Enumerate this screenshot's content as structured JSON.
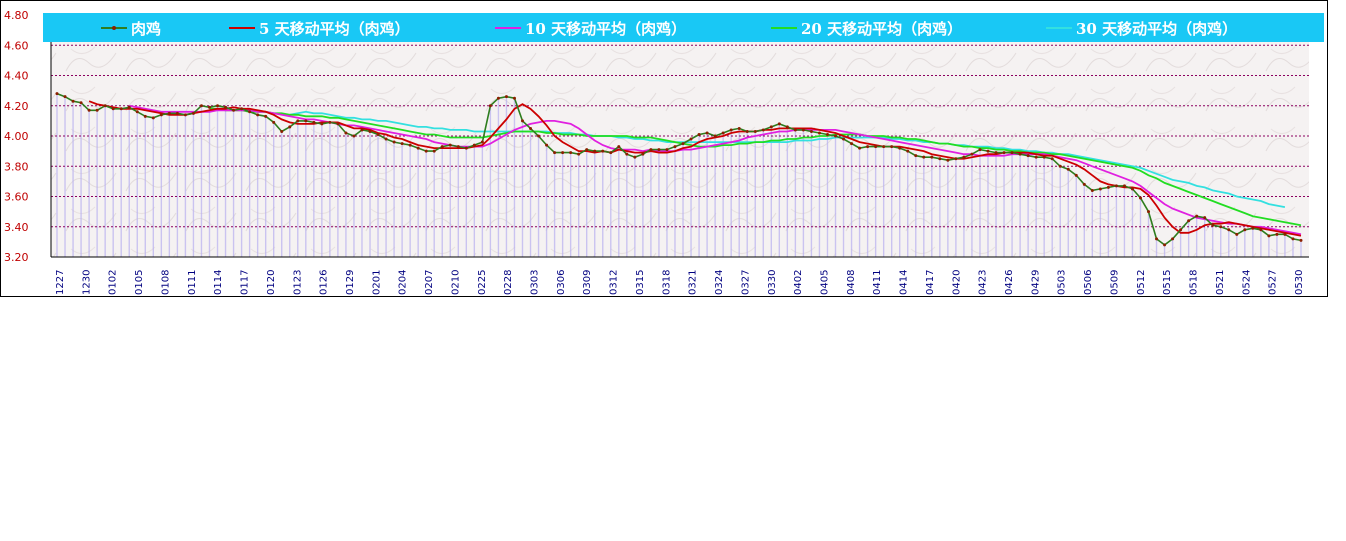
{
  "chart_data": {
    "type": "line",
    "y_axis": {
      "min": 3.2,
      "max": 4.8,
      "step": 0.2,
      "tick_labels": [
        "3.20",
        "3.40",
        "3.60",
        "3.80",
        "4.00",
        "4.20",
        "4.40",
        "4.60",
        "4.80"
      ]
    },
    "x_axis": {
      "tick_labels": [
        "1227",
        "1230",
        "0102",
        "0105",
        "0108",
        "0111",
        "0114",
        "0117",
        "0120",
        "0123",
        "0126",
        "0129",
        "0201",
        "0204",
        "0207",
        "0210",
        "0225",
        "0228",
        "0303",
        "0306",
        "0309",
        "0312",
        "0315",
        "0318",
        "0321",
        "0324",
        "0327",
        "0330",
        "0402",
        "0405",
        "0408",
        "0411",
        "0414",
        "0417",
        "0420",
        "0423",
        "0426",
        "0429",
        "0503",
        "0506",
        "0509",
        "0512",
        "0515",
        "0518",
        "0521",
        "0524",
        "0527",
        "0530"
      ]
    },
    "grid": "horizontal dashed",
    "legend_position": "top",
    "series": [
      {
        "name": "肉鸡",
        "color": "#2e7d1e",
        "marker": "dot",
        "values": [
          4.28,
          4.26,
          4.23,
          4.22,
          4.17,
          4.17,
          4.2,
          4.18,
          4.18,
          4.19,
          4.16,
          4.13,
          4.12,
          4.14,
          4.15,
          4.15,
          4.14,
          4.15,
          4.2,
          4.19,
          4.2,
          4.19,
          4.17,
          4.18,
          4.16,
          4.14,
          4.13,
          4.09,
          4.03,
          4.06,
          4.1,
          4.1,
          4.09,
          4.08,
          4.09,
          4.08,
          4.02,
          4.0,
          4.04,
          4.03,
          4.01,
          3.98,
          3.96,
          3.95,
          3.94,
          3.92,
          3.9,
          3.9,
          3.93,
          3.94,
          3.93,
          3.92,
          3.94,
          3.96,
          4.2,
          4.25,
          4.26,
          4.25,
          4.1,
          4.05,
          4.0,
          3.94,
          3.89,
          3.89,
          3.89,
          3.88,
          3.91,
          3.9,
          3.9,
          3.89,
          3.93,
          3.88,
          3.86,
          3.88,
          3.91,
          3.91,
          3.91,
          3.93,
          3.95,
          3.98,
          4.01,
          4.02,
          4.0,
          4.02,
          4.04,
          4.05,
          4.03,
          4.03,
          4.04,
          4.06,
          4.08,
          4.06,
          4.04,
          4.04,
          4.03,
          4.02,
          4.01,
          4.0,
          3.98,
          3.95,
          3.92,
          3.93,
          3.93,
          3.93,
          3.93,
          3.92,
          3.9,
          3.87,
          3.86,
          3.86,
          3.85,
          3.84,
          3.85,
          3.86,
          3.88,
          3.91,
          3.9,
          3.89,
          3.89,
          3.89,
          3.88,
          3.87,
          3.86,
          3.86,
          3.85,
          3.8,
          3.78,
          3.74,
          3.68,
          3.64,
          3.65,
          3.66,
          3.67,
          3.67,
          3.65,
          3.59,
          3.5,
          3.32,
          3.28,
          3.32,
          3.38,
          3.44,
          3.47,
          3.46,
          3.41,
          3.4,
          3.38,
          3.35,
          3.38,
          3.39,
          3.38,
          3.34,
          3.35,
          3.35,
          3.32,
          3.31
        ]
      },
      {
        "name": "5 天移动平均（肉鸡）",
        "color": "#cc0000",
        "values": [
          null,
          null,
          null,
          null,
          4.23,
          4.21,
          4.2,
          4.19,
          4.18,
          4.18,
          4.18,
          4.17,
          4.16,
          4.15,
          4.14,
          4.14,
          4.14,
          4.15,
          4.16,
          4.17,
          4.18,
          4.18,
          4.19,
          4.18,
          4.18,
          4.17,
          4.16,
          4.14,
          4.11,
          4.09,
          4.08,
          4.08,
          4.08,
          4.09,
          4.09,
          4.09,
          4.07,
          4.05,
          4.05,
          4.04,
          4.02,
          4.01,
          3.99,
          3.98,
          3.96,
          3.94,
          3.93,
          3.92,
          3.92,
          3.92,
          3.92,
          3.92,
          3.93,
          3.94,
          3.99,
          4.05,
          4.11,
          4.18,
          4.21,
          4.18,
          4.13,
          4.07,
          4.0,
          3.96,
          3.93,
          3.9,
          3.9,
          3.89,
          3.9,
          3.89,
          3.91,
          3.9,
          3.89,
          3.89,
          3.9,
          3.89,
          3.89,
          3.9,
          3.92,
          3.93,
          3.96,
          3.98,
          3.99,
          4.0,
          4.02,
          4.03,
          4.03,
          4.03,
          4.04,
          4.04,
          4.05,
          4.05,
          4.05,
          4.05,
          4.05,
          4.04,
          4.03,
          4.02,
          4.0,
          3.98,
          3.96,
          3.95,
          3.94,
          3.93,
          3.93,
          3.93,
          3.92,
          3.91,
          3.9,
          3.88,
          3.87,
          3.86,
          3.85,
          3.85,
          3.86,
          3.87,
          3.88,
          3.88,
          3.89,
          3.89,
          3.89,
          3.89,
          3.88,
          3.87,
          3.87,
          3.85,
          3.83,
          3.81,
          3.78,
          3.74,
          3.7,
          3.68,
          3.67,
          3.66,
          3.66,
          3.65,
          3.61,
          3.54,
          3.46,
          3.4,
          3.36,
          3.36,
          3.38,
          3.41,
          3.42,
          3.42,
          3.43,
          3.42,
          3.41,
          3.4,
          3.39,
          3.38,
          3.37,
          3.36,
          3.35,
          3.34
        ]
      },
      {
        "name": "10 天移动平均（肉鸡）",
        "color": "#e020e0",
        "values": [
          null,
          null,
          null,
          null,
          null,
          null,
          null,
          null,
          null,
          4.2,
          4.19,
          4.18,
          4.17,
          4.16,
          4.16,
          4.16,
          4.16,
          4.16,
          4.16,
          4.16,
          4.17,
          4.17,
          4.17,
          4.17,
          4.17,
          4.16,
          4.16,
          4.15,
          4.14,
          4.13,
          4.12,
          4.11,
          4.11,
          4.1,
          4.09,
          4.08,
          4.07,
          4.07,
          4.06,
          4.05,
          4.04,
          4.03,
          4.02,
          4.01,
          4.0,
          3.99,
          3.98,
          3.96,
          3.95,
          3.94,
          3.93,
          3.93,
          3.93,
          3.93,
          3.95,
          3.98,
          4.01,
          4.04,
          4.06,
          4.08,
          4.09,
          4.1,
          4.1,
          4.09,
          4.08,
          4.05,
          4.01,
          3.97,
          3.94,
          3.92,
          3.91,
          3.91,
          3.91,
          3.9,
          3.91,
          3.9,
          3.9,
          3.9,
          3.91,
          3.91,
          3.92,
          3.93,
          3.94,
          3.95,
          3.96,
          3.97,
          3.99,
          4.0,
          4.01,
          4.02,
          4.03,
          4.03,
          4.04,
          4.04,
          4.04,
          4.04,
          4.04,
          4.04,
          4.03,
          4.02,
          4.01,
          4.0,
          3.99,
          3.98,
          3.97,
          3.96,
          3.95,
          3.94,
          3.93,
          3.92,
          3.91,
          3.9,
          3.89,
          3.88,
          3.88,
          3.87,
          3.87,
          3.87,
          3.87,
          3.88,
          3.88,
          3.88,
          3.88,
          3.88,
          3.87,
          3.86,
          3.85,
          3.84,
          3.82,
          3.8,
          3.78,
          3.76,
          3.74,
          3.72,
          3.7,
          3.67,
          3.63,
          3.59,
          3.55,
          3.52,
          3.5,
          3.48,
          3.46,
          3.45,
          3.44,
          3.43,
          3.42,
          3.42,
          3.41,
          3.4,
          3.4,
          3.39,
          3.38,
          3.37,
          3.36,
          3.35
        ]
      },
      {
        "name": "20 天移动平均（肉鸡）",
        "color": "#22dd22",
        "values": [
          null,
          null,
          null,
          null,
          null,
          null,
          null,
          null,
          null,
          null,
          null,
          null,
          null,
          null,
          null,
          null,
          null,
          null,
          null,
          4.18,
          4.18,
          4.17,
          4.17,
          4.17,
          4.16,
          4.16,
          4.16,
          4.15,
          4.15,
          4.14,
          4.14,
          4.13,
          4.13,
          4.13,
          4.12,
          4.12,
          4.11,
          4.1,
          4.09,
          4.08,
          4.07,
          4.06,
          4.05,
          4.04,
          4.03,
          4.02,
          4.01,
          4.01,
          4.0,
          3.99,
          3.99,
          3.99,
          3.99,
          3.99,
          4.0,
          4.01,
          4.02,
          4.03,
          4.03,
          4.03,
          4.03,
          4.02,
          4.02,
          4.01,
          4.01,
          4.01,
          4.0,
          4.0,
          4.0,
          4.0,
          4.0,
          4.0,
          3.99,
          3.99,
          3.99,
          3.98,
          3.97,
          3.96,
          3.95,
          3.94,
          3.93,
          3.93,
          3.93,
          3.94,
          3.94,
          3.95,
          3.95,
          3.96,
          3.96,
          3.97,
          3.97,
          3.98,
          3.98,
          3.99,
          3.99,
          4.0,
          4.0,
          4.01,
          4.01,
          4.01,
          4.01,
          4.0,
          4.0,
          4.0,
          3.99,
          3.99,
          3.98,
          3.98,
          3.97,
          3.96,
          3.95,
          3.95,
          3.94,
          3.93,
          3.93,
          3.92,
          3.92,
          3.91,
          3.91,
          3.9,
          3.9,
          3.89,
          3.89,
          3.89,
          3.88,
          3.88,
          3.87,
          3.86,
          3.85,
          3.84,
          3.83,
          3.82,
          3.81,
          3.8,
          3.79,
          3.77,
          3.74,
          3.72,
          3.69,
          3.67,
          3.65,
          3.63,
          3.61,
          3.59,
          3.57,
          3.55,
          3.53,
          3.51,
          3.49,
          3.47,
          3.46,
          3.45,
          3.44,
          3.43,
          3.42,
          3.41
        ]
      },
      {
        "name": "30 天移动平均（肉鸡）",
        "color": "#33e0e0",
        "values": [
          null,
          null,
          null,
          null,
          null,
          null,
          null,
          null,
          null,
          null,
          null,
          null,
          null,
          null,
          null,
          null,
          null,
          null,
          null,
          null,
          null,
          null,
          null,
          null,
          null,
          null,
          null,
          null,
          null,
          4.14,
          4.15,
          4.16,
          4.15,
          4.15,
          4.14,
          4.13,
          4.12,
          4.12,
          4.11,
          4.11,
          4.1,
          4.1,
          4.09,
          4.08,
          4.07,
          4.06,
          4.06,
          4.05,
          4.05,
          4.04,
          4.04,
          4.04,
          4.03,
          4.03,
          4.03,
          4.03,
          4.03,
          4.03,
          4.03,
          4.03,
          4.03,
          4.03,
          4.02,
          4.02,
          4.02,
          4.01,
          4.01,
          4.0,
          4.0,
          4.0,
          3.99,
          3.99,
          3.98,
          3.98,
          3.97,
          3.97,
          3.96,
          3.96,
          3.96,
          3.96,
          3.96,
          3.96,
          3.96,
          3.96,
          3.96,
          3.96,
          3.96,
          3.96,
          3.96,
          3.96,
          3.96,
          3.96,
          3.97,
          3.97,
          3.97,
          3.98,
          3.98,
          3.99,
          3.99,
          3.99,
          3.99,
          3.99,
          3.99,
          3.99,
          3.98,
          3.98,
          3.97,
          3.97,
          3.96,
          3.96,
          3.95,
          3.95,
          3.94,
          3.94,
          3.93,
          3.93,
          3.93,
          3.92,
          3.92,
          3.91,
          3.91,
          3.9,
          3.9,
          3.89,
          3.89,
          3.88,
          3.88,
          3.87,
          3.86,
          3.85,
          3.84,
          3.83,
          3.82,
          3.81,
          3.8,
          3.79,
          3.77,
          3.75,
          3.73,
          3.71,
          3.7,
          3.69,
          3.67,
          3.66,
          3.64,
          3.63,
          3.62,
          3.6,
          3.59,
          3.58,
          3.57,
          3.55,
          3.54,
          3.53
        ]
      }
    ]
  }
}
